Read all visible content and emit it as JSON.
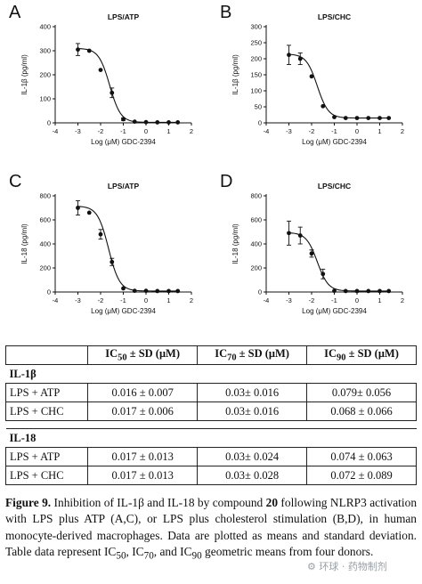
{
  "chart_data": [
    {
      "panel": "A",
      "type": "scatter",
      "title": "LPS/ATP",
      "xlabel": "Log (μM) GDC-2394",
      "ylabel": "IL-1β (pg/ml)",
      "xlim": [
        -4,
        2
      ],
      "ylim": [
        0,
        400
      ],
      "xticks": [
        -4,
        -3,
        -2,
        -1,
        0,
        1,
        2
      ],
      "yticks": [
        0,
        100,
        200,
        300,
        400
      ],
      "x": [
        -3.0,
        -2.5,
        -2.0,
        -1.5,
        -1.0,
        -0.5,
        0.0,
        0.5,
        1.0,
        1.4
      ],
      "y": [
        305,
        300,
        220,
        125,
        15,
        5,
        3,
        2,
        2,
        2
      ],
      "err": [
        25,
        0,
        0,
        20,
        5,
        0,
        0,
        0,
        0,
        0
      ],
      "curve": {
        "top": 310,
        "bottom": 2,
        "logic50": -1.6,
        "hill": 1.8
      }
    },
    {
      "panel": "B",
      "type": "scatter",
      "title": "LPS/CHC",
      "xlabel": "Log (μM) GDC-2394",
      "ylabel": "IL-1β (pg/ml)",
      "xlim": [
        -4,
        2
      ],
      "ylim": [
        0,
        300
      ],
      "xticks": [
        -4,
        -3,
        -2,
        -1,
        0,
        1,
        2
      ],
      "yticks": [
        0,
        50,
        100,
        150,
        200,
        250,
        300
      ],
      "x": [
        -3.0,
        -2.5,
        -2.0,
        -1.5,
        -1.0,
        -0.5,
        0.0,
        0.5,
        1.0,
        1.4
      ],
      "y": [
        212,
        200,
        145,
        52,
        18,
        15,
        15,
        15,
        15,
        15
      ],
      "err": [
        30,
        18,
        0,
        0,
        0,
        0,
        0,
        0,
        0,
        0
      ],
      "curve": {
        "top": 215,
        "bottom": 15,
        "logic50": -1.75,
        "hill": 1.8
      }
    },
    {
      "panel": "C",
      "type": "scatter",
      "title": "LPS/ATP",
      "xlabel": "Log (μM) GDC-2394",
      "ylabel": "IL-18 (pg/ml)",
      "xlim": [
        -4,
        2
      ],
      "ylim": [
        0,
        800
      ],
      "xticks": [
        -4,
        -3,
        -2,
        -1,
        0,
        1,
        2
      ],
      "yticks": [
        0,
        200,
        400,
        600,
        800
      ],
      "x": [
        -3.0,
        -2.5,
        -2.0,
        -1.5,
        -1.0,
        -0.5,
        0.0,
        0.5,
        1.0,
        1.4
      ],
      "y": [
        700,
        660,
        480,
        250,
        30,
        10,
        10,
        8,
        8,
        8
      ],
      "err": [
        60,
        0,
        40,
        30,
        0,
        0,
        0,
        0,
        0,
        0
      ],
      "curve": {
        "top": 715,
        "bottom": 8,
        "logic50": -1.65,
        "hill": 1.8
      }
    },
    {
      "panel": "D",
      "type": "scatter",
      "title": "LPS/CHC",
      "xlabel": "Log (μM) GDC-2394",
      "ylabel": "IL-18 (pg/ml)",
      "xlim": [
        -4,
        2
      ],
      "ylim": [
        0,
        800
      ],
      "xticks": [
        -4,
        -3,
        -2,
        -1,
        0,
        1,
        2
      ],
      "yticks": [
        0,
        200,
        400,
        600,
        800
      ],
      "x": [
        -3.0,
        -2.5,
        -2.0,
        -1.5,
        -1.0,
        -0.5,
        0.0,
        0.5,
        1.0,
        1.4
      ],
      "y": [
        490,
        470,
        320,
        150,
        10,
        8,
        8,
        8,
        8,
        8
      ],
      "err": [
        100,
        70,
        30,
        40,
        0,
        0,
        0,
        0,
        0,
        0
      ],
      "curve": {
        "top": 495,
        "bottom": 8,
        "logic50": -1.75,
        "hill": 1.8
      }
    }
  ],
  "table": {
    "headers": [
      "",
      "IC50 ± SD (μM)",
      "IC70 ± SD (μM)",
      "IC90 ± SD (μM)"
    ],
    "header_parts": [
      {
        "pre": "IC",
        "sub": "50",
        "post": " ± SD (μM)"
      },
      {
        "pre": "IC",
        "sub": "70",
        "post": " ± SD (μM)"
      },
      {
        "pre": "IC",
        "sub": "90",
        "post": " ± SD (μM)"
      }
    ],
    "groups": [
      {
        "name": "IL-1β",
        "rows": [
          {
            "label": "LPS + ATP",
            "values": [
              "0.016 ± 0.007",
              "0.03± 0.016",
              "0.079± 0.056"
            ]
          },
          {
            "label": "LPS + CHC",
            "values": [
              "0.017 ± 0.006",
              "0.03± 0.016",
              "0.068 ± 0.066"
            ]
          }
        ]
      },
      {
        "name": "IL-18",
        "rows": [
          {
            "label": "LPS + ATP",
            "values": [
              "0.017 ± 0.013",
              "0.03± 0.024",
              "0.074 ± 0.063"
            ]
          },
          {
            "label": "LPS + CHC",
            "values": [
              "0.017 ± 0.013",
              "0.03± 0.028",
              "0.072 ± 0.089"
            ]
          }
        ]
      }
    ]
  },
  "caption": {
    "fig_label": "Figure 9.",
    "text_1": " Inhibition of IL-1β and IL-18 by compound ",
    "compound": "20",
    "text_2": " following NLRP3 activation with LPS plus ATP (A,C), or LPS plus cholesterol stimulation (B,D), in human monocyte-derived macrophages. Data are plotted as means and standard deviation. Table data represent IC",
    "sub_50": "50",
    "text_3": ", IC",
    "sub_70": "70",
    "text_4": ", and IC",
    "sub_90": "90",
    "text_5": " geometric means from four donors."
  },
  "watermark": "⚙ 环球 · 药物制剂"
}
